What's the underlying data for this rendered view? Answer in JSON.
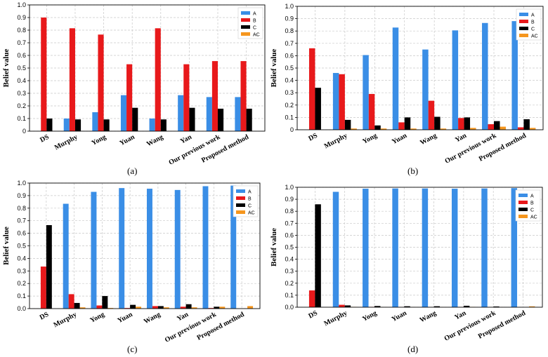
{
  "colors": {
    "A": "#3a8ee6",
    "B": "#e8191b",
    "C": "#000000",
    "AC": "#f5961e",
    "grid": "#c8c8c8"
  },
  "chart_data": [
    {
      "type": "bar",
      "panel_label": "(a)",
      "ylabel": "Belief value",
      "ylim": [
        0,
        1.0
      ],
      "yticks": [
        "0",
        "0.1",
        "0.2",
        "0.3",
        "0.4",
        "0.5",
        "0.6",
        "0.7",
        "0.8",
        "0.9",
        "1.0"
      ],
      "categories": [
        "DS",
        "Murphy",
        "Yong",
        "Yuan",
        "Wang",
        "Yan",
        "Our previous work",
        "Proposed method"
      ],
      "legend_loc": "top-right",
      "series": [
        {
          "name": "A",
          "values": [
            0.0,
            0.1,
            0.15,
            0.285,
            0.1,
            0.285,
            0.27,
            0.27
          ]
        },
        {
          "name": "B",
          "values": [
            0.9,
            0.815,
            0.765,
            0.53,
            0.815,
            0.53,
            0.555,
            0.555
          ]
        },
        {
          "name": "C",
          "values": [
            0.1,
            0.093,
            0.093,
            0.185,
            0.093,
            0.185,
            0.178,
            0.178
          ]
        },
        {
          "name": "AC",
          "values": [
            0,
            0,
            0,
            0,
            0,
            0,
            0,
            0
          ]
        }
      ]
    },
    {
      "type": "bar",
      "panel_label": "(b)",
      "ylabel": "Belief value",
      "ylim": [
        0,
        1.0
      ],
      "yticks": [
        "0",
        "0.1",
        "0.2",
        "0.3",
        "0.4",
        "0.5",
        "0.6",
        "0.7",
        "0.8",
        "0.9",
        "1.0"
      ],
      "categories": [
        "DS",
        "Murphy",
        "Yong",
        "Yuan",
        "Wang",
        "Yan",
        "Our previous work",
        "Proposed method"
      ],
      "legend_loc": "top-right",
      "series": [
        {
          "name": "A",
          "values": [
            0.0,
            0.46,
            0.605,
            0.828,
            0.65,
            0.805,
            0.865,
            0.88
          ]
        },
        {
          "name": "B",
          "values": [
            0.66,
            0.45,
            0.29,
            0.06,
            0.235,
            0.095,
            0.045,
            0.02
          ]
        },
        {
          "name": "C",
          "values": [
            0.34,
            0.08,
            0.035,
            0.1,
            0.105,
            0.1,
            0.07,
            0.085
          ]
        },
        {
          "name": "AC",
          "values": [
            0.0,
            0.01,
            0.01,
            0.01,
            0.01,
            0.015,
            0.025,
            0.015
          ]
        }
      ]
    },
    {
      "type": "bar",
      "panel_label": "(c)",
      "ylabel": "Belief value",
      "ylim": [
        0,
        1.0
      ],
      "yticks": [
        "0.0",
        "0.1",
        "0.2",
        "0.3",
        "0.4",
        "0.5",
        "0.6",
        "0.7",
        "0.8",
        "0.9",
        "1.0"
      ],
      "categories": [
        "DS",
        "Murphy",
        "Yong",
        "Yuan",
        "Wang",
        "Yan",
        "Our previous work",
        "Proposed method"
      ],
      "legend_loc": "top-right",
      "series": [
        {
          "name": "A",
          "values": [
            0.0,
            0.835,
            0.93,
            0.96,
            0.955,
            0.945,
            0.975,
            0.98
          ]
        },
        {
          "name": "B",
          "values": [
            0.335,
            0.115,
            0.025,
            0.005,
            0.02,
            0.015,
            0.005,
            0.0
          ]
        },
        {
          "name": "C",
          "values": [
            0.665,
            0.045,
            0.1,
            0.03,
            0.02,
            0.035,
            0.015,
            0.0
          ]
        },
        {
          "name": "AC",
          "values": [
            0.0,
            0.01,
            0.005,
            0.015,
            0.01,
            0.01,
            0.015,
            0.02
          ]
        }
      ]
    },
    {
      "type": "bar",
      "panel_label": "(d)",
      "ylabel": "Belief value",
      "ylim": [
        0,
        1.0
      ],
      "yticks": [
        "0.0",
        "0.1",
        "0.2",
        "0.3",
        "0.4",
        "0.5",
        "0.6",
        "0.7",
        "0.8",
        "0.9",
        "1.0"
      ],
      "categories": [
        "DS",
        "Murphy",
        "Yong",
        "Yuan",
        "Wang",
        "Yan",
        "Our previous work",
        "Proposed method"
      ],
      "legend_loc": "top-right",
      "series": [
        {
          "name": "A",
          "values": [
            0.0,
            0.962,
            0.988,
            0.99,
            0.99,
            0.988,
            0.99,
            0.993
          ]
        },
        {
          "name": "B",
          "values": [
            0.14,
            0.02,
            0.003,
            0.001,
            0.001,
            0.002,
            0.001,
            0.0
          ]
        },
        {
          "name": "C",
          "values": [
            0.858,
            0.015,
            0.01,
            0.008,
            0.008,
            0.012,
            0.006,
            0.0
          ]
        },
        {
          "name": "AC",
          "values": [
            0.0,
            0.003,
            0.001,
            0.001,
            0.001,
            0.003,
            0.001,
            0.007
          ]
        }
      ]
    }
  ]
}
